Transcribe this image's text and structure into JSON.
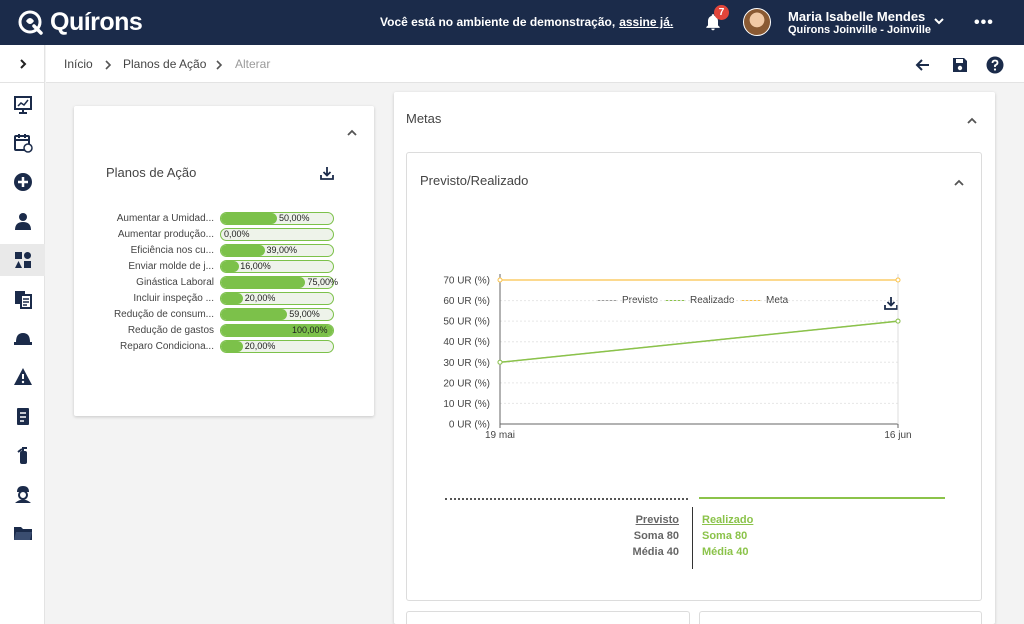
{
  "app": {
    "logo_text": "Quírons",
    "demo_message": "Você está no ambiente de demonstração,",
    "demo_link": "assine já.",
    "notifications_count": "7",
    "user_name": "Maria Isabelle Mendes",
    "user_org": "Quírons Joinville - Joinville",
    "more_label": "•••"
  },
  "breadcrumb": [
    "Início",
    "Planos de Ação",
    "Alterar"
  ],
  "sidebar_icons": [
    "dashboard-icon",
    "calendar-clock-icon",
    "add-circle-icon",
    "users-icon",
    "modules-icon",
    "documents-icon",
    "helmet-icon",
    "warning-icon",
    "clipboard-icon",
    "extinguisher-icon",
    "worker-icon",
    "folder-icon"
  ],
  "planos": {
    "title": "Planos de Ação",
    "items": [
      {
        "label": "Aumentar a Umidad...",
        "value": 50,
        "display": "50,00%"
      },
      {
        "label": "Aumentar produção...",
        "value": 0,
        "display": "0,00%"
      },
      {
        "label": "Eficiência nos cu...",
        "value": 39,
        "display": "39,00%"
      },
      {
        "label": "Enviar molde de j...",
        "value": 16,
        "display": "16,00%"
      },
      {
        "label": "Ginástica Laboral",
        "value": 75,
        "display": "75,00%"
      },
      {
        "label": "Incluir inspeção ...",
        "value": 20,
        "display": "20,00%"
      },
      {
        "label": "Redução de consum...",
        "value": 59,
        "display": "59,00%"
      },
      {
        "label": "Redução de gastos",
        "value": 100,
        "display": "100,00%"
      },
      {
        "label": "Reparo Condiciona...",
        "value": 20,
        "display": "20,00%"
      }
    ]
  },
  "metas": {
    "title": "Metas",
    "subtitle": "Previsto/Realizado",
    "colors": {
      "previsto": "#9e9e9e",
      "realizado": "#8bc34a",
      "meta": "#f9c24a"
    },
    "summary": {
      "previsto_label": "Previsto",
      "previsto_soma": "Soma 80",
      "previsto_media": "Média 40",
      "realizado_label": "Realizado",
      "realizado_soma": "Soma 80",
      "realizado_media": "Média 40"
    }
  },
  "chart_data": {
    "type": "line",
    "x": [
      "19 mai",
      "16 jun"
    ],
    "series": [
      {
        "name": "Previsto",
        "values": [
          30,
          50
        ]
      },
      {
        "name": "Realizado",
        "values": [
          30,
          50
        ]
      },
      {
        "name": "Meta",
        "values": [
          70,
          70
        ]
      }
    ],
    "y_ticks": [
      "0 UR (%)",
      "10 UR (%)",
      "20 UR (%)",
      "30 UR (%)",
      "40 UR (%)",
      "50 UR (%)",
      "60 UR (%)",
      "70 UR (%)"
    ],
    "ylim": [
      0,
      70
    ],
    "grid": true,
    "legend_position": "top"
  }
}
